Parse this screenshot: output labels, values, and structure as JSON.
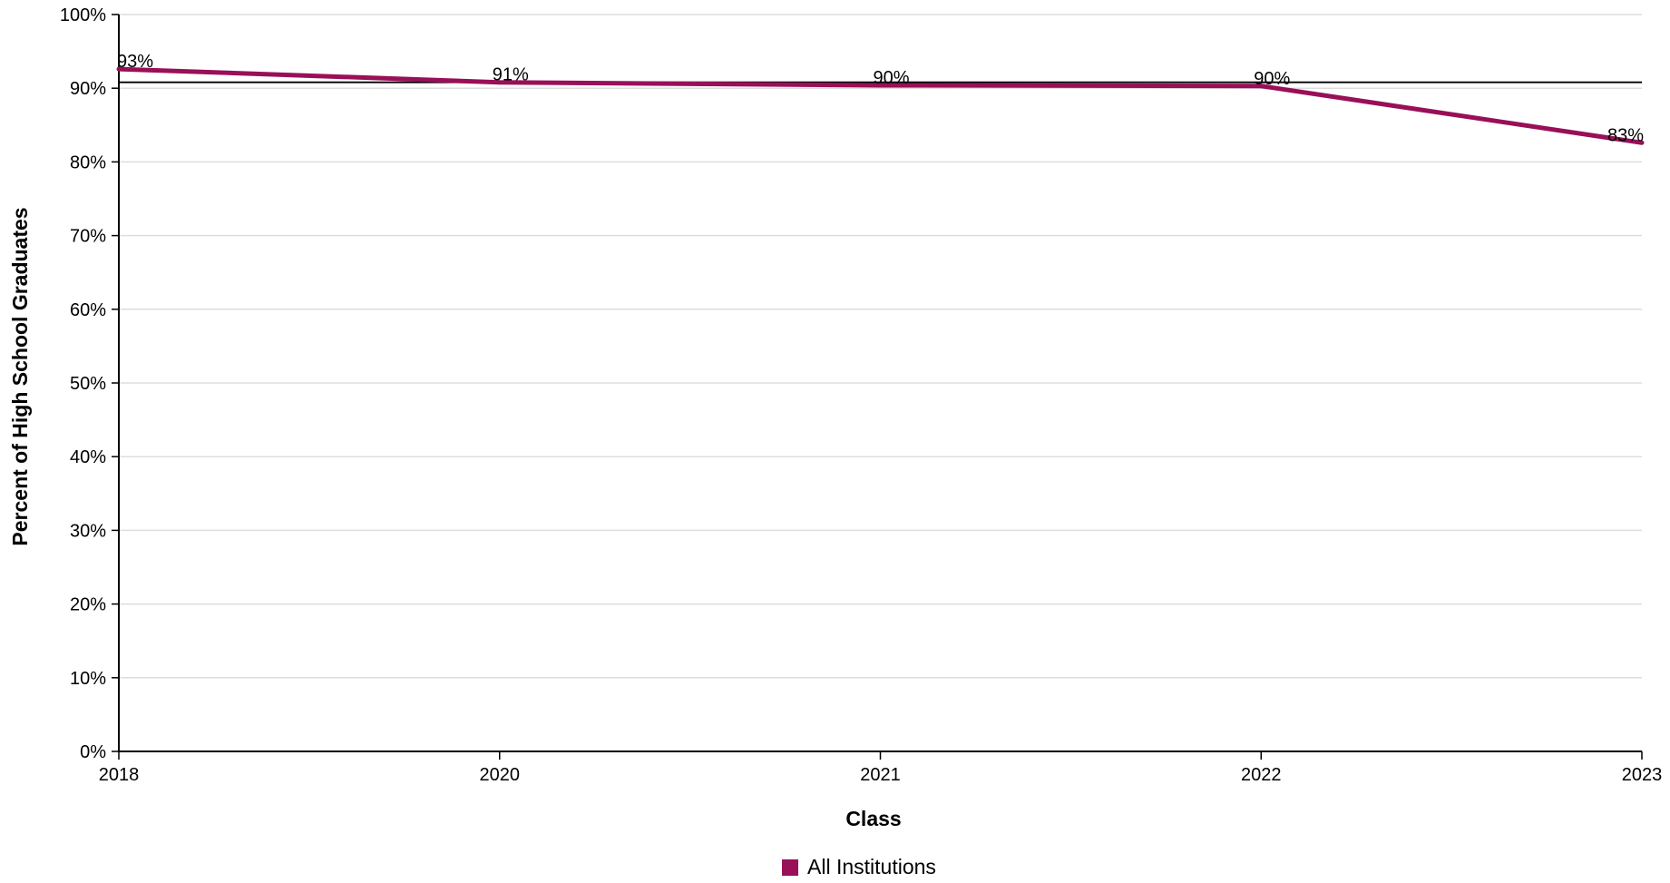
{
  "chart_data": {
    "type": "line",
    "title": "",
    "xlabel": "Class",
    "ylabel": "Percent of High School Graduates",
    "categories": [
      "2018",
      "2020",
      "2021",
      "2022",
      "2023"
    ],
    "series": [
      {
        "name": "All Institutions",
        "values": [
          92.6,
          90.8,
          90.4,
          90.3,
          82.6
        ],
        "labels": [
          "93%",
          "91%",
          "90%",
          "90%",
          "83%"
        ],
        "color": "#990f58"
      }
    ],
    "reference_line": {
      "value": 90.8,
      "color": "#000000"
    },
    "ylim": [
      0,
      100
    ],
    "yticks": [
      0,
      10,
      20,
      30,
      40,
      50,
      60,
      70,
      80,
      90,
      100
    ],
    "ytick_labels": [
      "0%",
      "10%",
      "20%",
      "30%",
      "40%",
      "50%",
      "60%",
      "70%",
      "80%",
      "90%",
      "100%"
    ],
    "grid": true,
    "legend_position": "bottom-center",
    "colors": {
      "grid": "#dddddd",
      "axis": "#000000"
    }
  }
}
